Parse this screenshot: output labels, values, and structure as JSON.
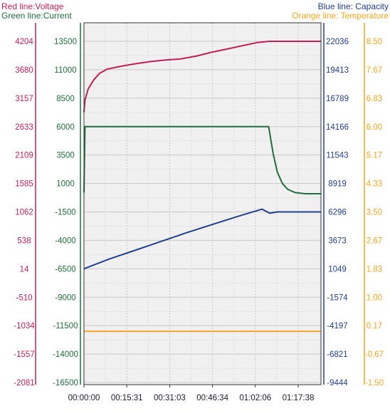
{
  "legend": {
    "voltage": "Red line:Voltage",
    "current": "Green line:Current",
    "capacity": "Blue line: Capacity",
    "temperature": "Orange line: Temperature"
  },
  "colors": {
    "voltage": "#c21f56",
    "current": "#1f6e3c",
    "capacity": "#21408e",
    "temperature": "#f5a623",
    "plot_bg": "#f0f0f0",
    "grid": "#c8c8c8"
  },
  "chart_data": {
    "type": "line",
    "grid": true,
    "x": {
      "ticks": [
        "00:00:00",
        "00:15:31",
        "00:31:03",
        "00:46:34",
        "01:02:06",
        "01:17:38"
      ],
      "range_seconds": [
        0,
        4658
      ]
    },
    "axes": {
      "voltage": {
        "ticks": [
          "4204",
          "3680",
          "3157",
          "2633",
          "2109",
          "1585",
          "1062",
          "538",
          "14",
          "-510",
          "-1034",
          "-1557",
          "-2081"
        ],
        "range": [
          -2081,
          4204
        ]
      },
      "current": {
        "ticks": [
          "13500",
          "11000",
          "8500",
          "6000",
          "3500",
          "1000",
          "-1500",
          "-4000",
          "-6500",
          "-9000",
          "-11500",
          "-14000",
          "-16500"
        ],
        "range": [
          -16500,
          13500
        ]
      },
      "capacity": {
        "ticks": [
          "22036",
          "19413",
          "16789",
          "14166",
          "11543",
          "8919",
          "6296",
          "3673",
          "1049",
          "-1574",
          "-4197",
          "-6821",
          "-9444"
        ],
        "range": [
          -9444,
          22036
        ]
      },
      "temperature": {
        "ticks": [
          "8.50",
          "7.67",
          "6.83",
          "6.00",
          "5.17",
          "4.33",
          "3.50",
          "2.67",
          "1.83",
          "1.00",
          "0.17",
          "-0.67",
          "-1.50"
        ],
        "range": [
          -1.5,
          8.5
        ]
      }
    },
    "series": [
      {
        "name": "Voltage",
        "axis": "voltage",
        "points": [
          [
            0,
            2900
          ],
          [
            20,
            3120
          ],
          [
            80,
            3320
          ],
          [
            180,
            3480
          ],
          [
            300,
            3610
          ],
          [
            450,
            3690
          ],
          [
            700,
            3740
          ],
          [
            1000,
            3790
          ],
          [
            1300,
            3830
          ],
          [
            1600,
            3860
          ],
          [
            1900,
            3880
          ],
          [
            2200,
            3930
          ],
          [
            2500,
            4000
          ],
          [
            2800,
            4060
          ],
          [
            3100,
            4120
          ],
          [
            3400,
            4180
          ],
          [
            3650,
            4204
          ],
          [
            4000,
            4204
          ],
          [
            4658,
            4204
          ]
        ]
      },
      {
        "name": "Current",
        "axis": "current",
        "points": [
          [
            0,
            200
          ],
          [
            20,
            6000
          ],
          [
            1000,
            6000
          ],
          [
            2000,
            6000
          ],
          [
            3000,
            6000
          ],
          [
            3630,
            6000
          ],
          [
            3720,
            3600
          ],
          [
            3800,
            2000
          ],
          [
            3900,
            1000
          ],
          [
            4000,
            500
          ],
          [
            4150,
            200
          ],
          [
            4350,
            100
          ],
          [
            4658,
            100
          ]
        ]
      },
      {
        "name": "Capacity",
        "axis": "capacity",
        "points": [
          [
            0,
            1049
          ],
          [
            500,
            1950
          ],
          [
            1000,
            2750
          ],
          [
            1500,
            3550
          ],
          [
            2000,
            4350
          ],
          [
            2500,
            5100
          ],
          [
            3000,
            5850
          ],
          [
            3500,
            6550
          ],
          [
            3650,
            6180
          ],
          [
            3800,
            6296
          ],
          [
            4000,
            6296
          ],
          [
            4658,
            6296
          ]
        ]
      },
      {
        "name": "Temperature",
        "axis": "temperature",
        "points": [
          [
            0,
            0.0
          ],
          [
            4658,
            0.0
          ]
        ]
      }
    ]
  }
}
